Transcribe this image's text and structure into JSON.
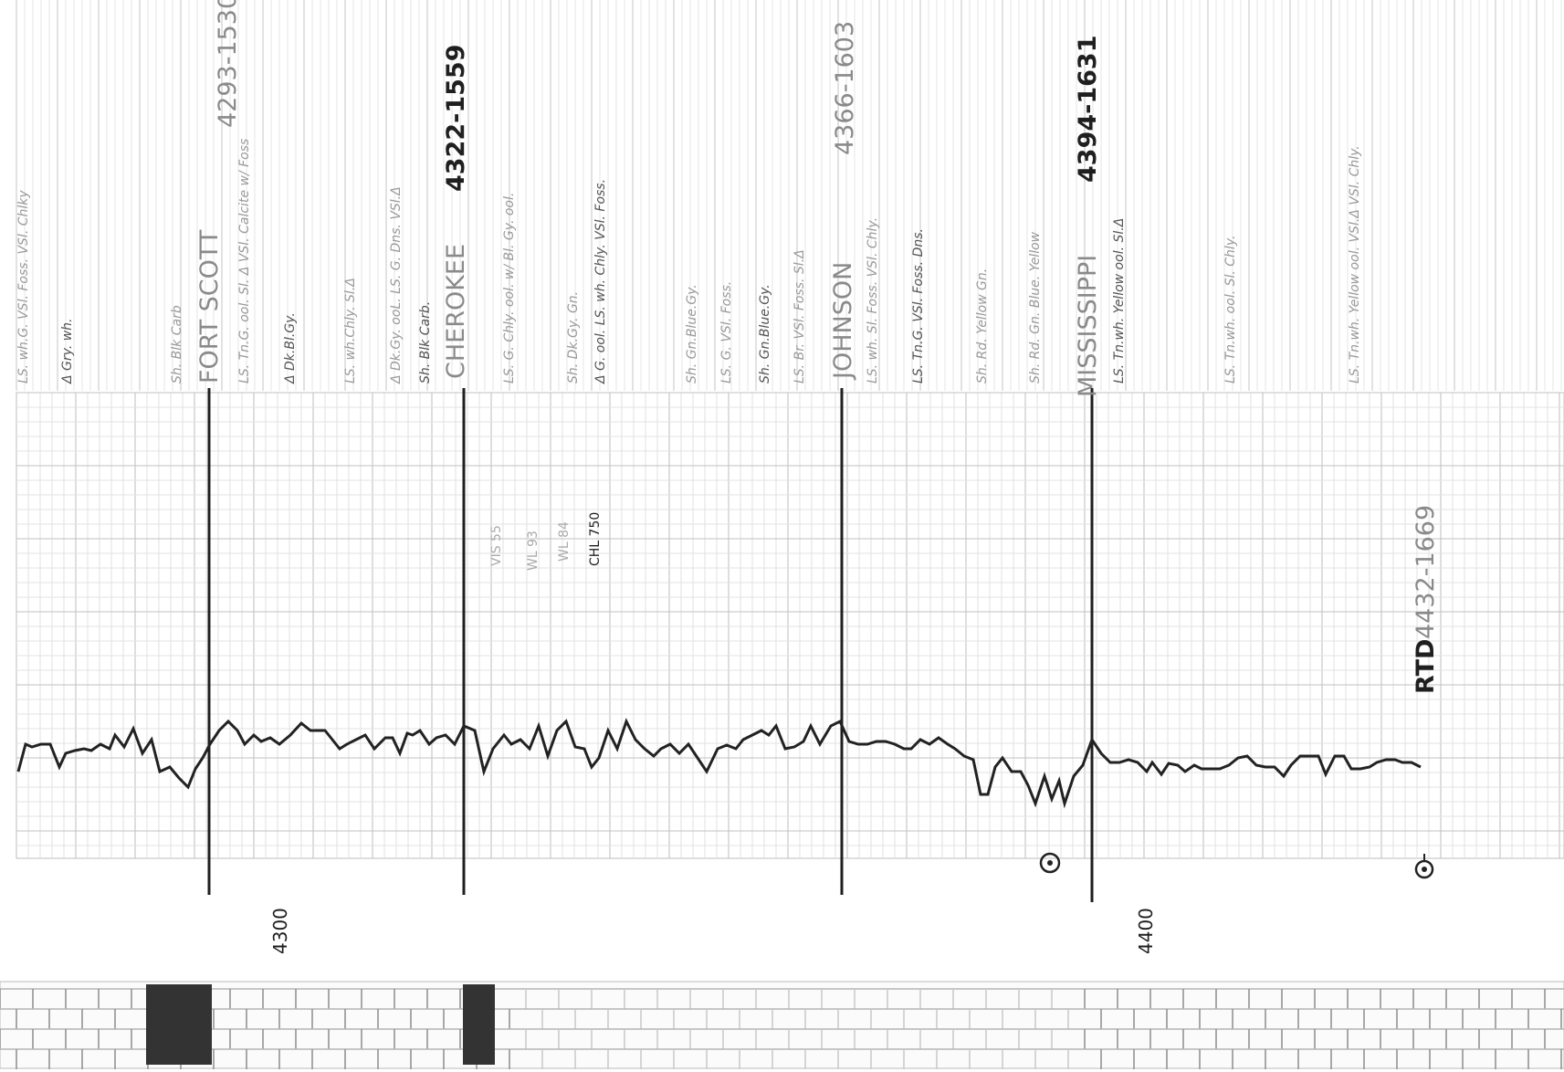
{
  "formation_tops": [
    {
      "name": "FORT SCOTT",
      "depth_datum": "4293-1530"
    },
    {
      "name": "CHEROKEE",
      "depth_datum": "4322-1559"
    },
    {
      "name": "JOHNSON",
      "depth_datum": "4366-1603"
    },
    {
      "name": "MISSISSIPPI",
      "depth_datum": "4394-1631"
    }
  ],
  "rtd": {
    "label": "RTD",
    "depth_datum": "4432-1669"
  },
  "depth_scale": [
    "4300",
    "4400"
  ],
  "lithology_descriptions": [
    "LS. wh.G. VSl. Foss. VSl. Chlky",
    "Δ Gry. wh.",
    "Sh. Blk Carb",
    "LS. Tn.G. ool. Sl. Δ VSl. Calcite w/ Foss",
    "Δ Dk.Bl.Gy.",
    "LS. wh.Chly. Sl.Δ",
    "Δ Dk.Gy. ooL. LS. G. Dns. VSl.Δ",
    "Sh. Blk Carb.",
    "LS. G. Chly. ool. w/ Bl. Gy. ool.",
    "Sh. Dk.Gy. Gn.",
    "Δ G. ool. LS. wh. Chly. VSl. Foss.",
    "Sh. Gn.Blue.Gy.",
    "LS. G. VSl. Foss.",
    "Sh. Gn.Blue.Gy.",
    "LS. Br. VSl. Foss. Sl.Δ",
    "LS. wh. Sl. Foss. VSl. Chly.",
    "LS. Tn.G. VSl. Foss. Dns.",
    "Sh. Rd. Yellow Gn.",
    "Sh. Rd. Gn. Blue. Yellow",
    "LS. Tn.wh. Yellow ool. Sl.Δ",
    "LS. Tn.wh. ool. Sl. Chly.",
    "LS. Tn.wh. Yellow ool. VSl.Δ VSl. Chly."
  ],
  "sample_notes": [
    "VIS 55",
    "WL 93",
    "WL 84",
    "CHL 750"
  ],
  "colors": {
    "ink": "#1f1f1f",
    "pencil": "#9a9a9a",
    "grid": "#c9c9c9",
    "paper": "#ffffff"
  }
}
